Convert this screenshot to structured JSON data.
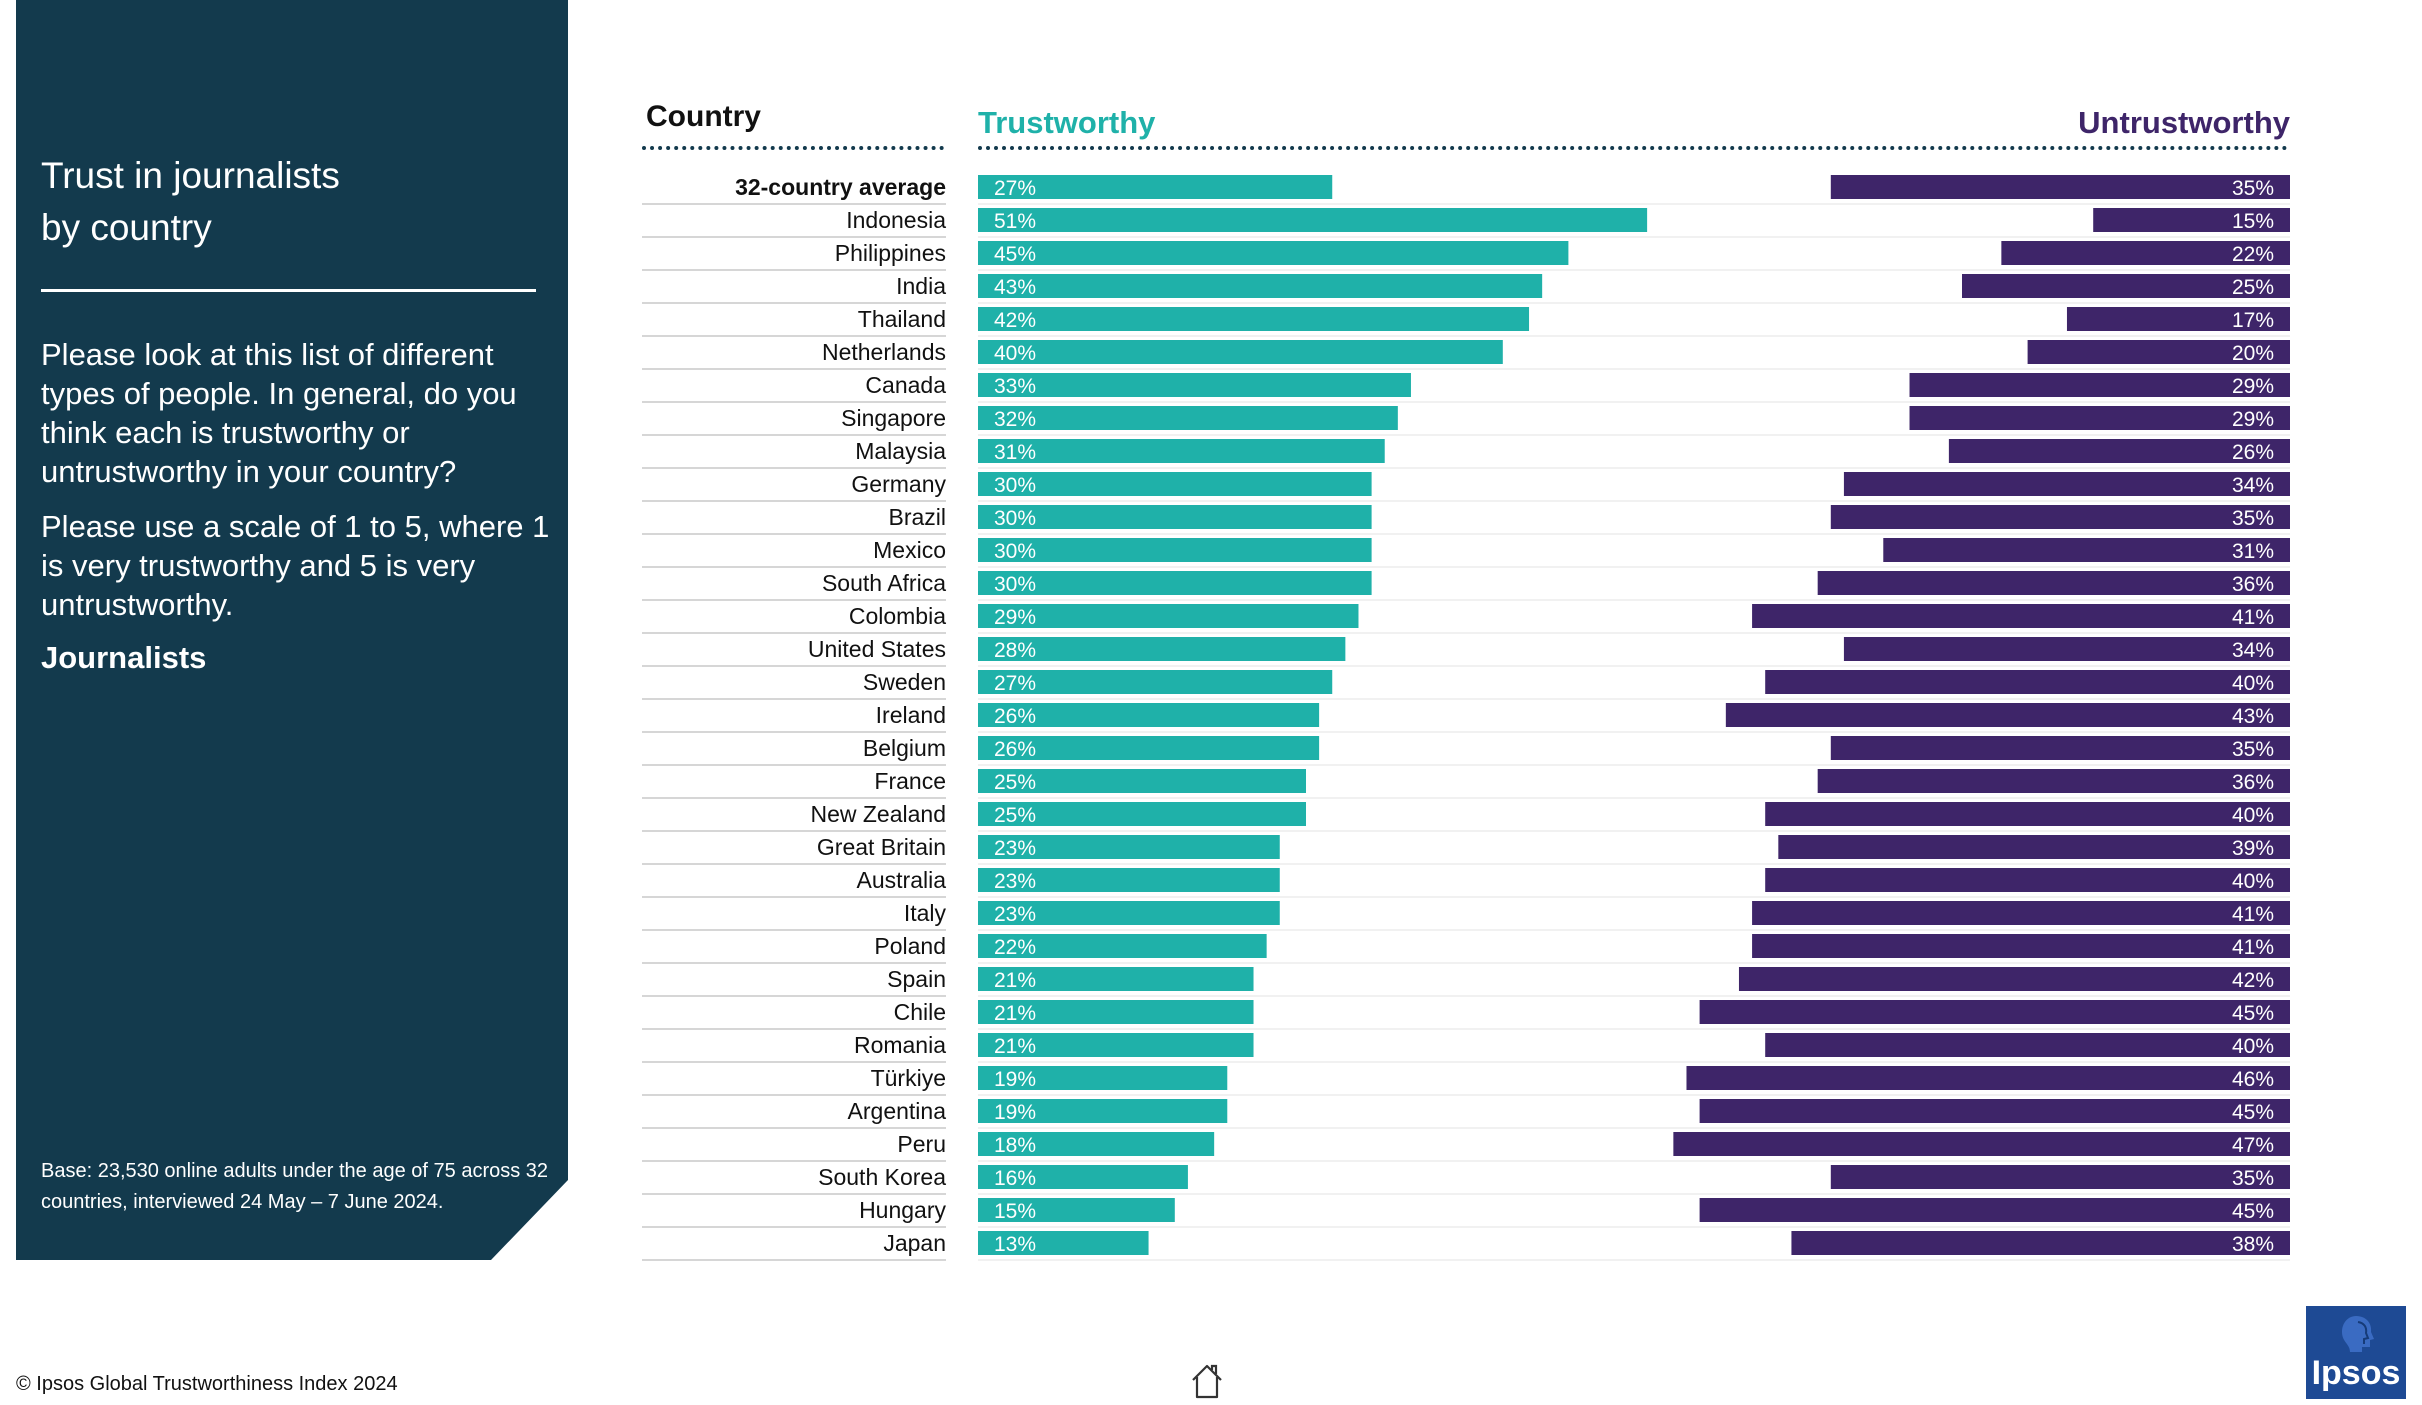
{
  "panel": {
    "title_line1": "Trust in journalists",
    "title_line2": "by country",
    "question": "Please look at this list of different types of people. In general, do you think each is trustworthy or untrustworthy in your country?",
    "scale": "Please use a scale of 1 to 5, where 1 is very trustworthy and 5 is very untrustworthy.",
    "subject": "Journalists",
    "base_note": "Base: 23,530 online adults under the age of 75 across 32 countries, interviewed 24 May – 7 June 2024."
  },
  "headers": {
    "country": "Country",
    "trustworthy": "Trustworthy",
    "untrustworthy": "Untrustworthy"
  },
  "footer": {
    "copyright": "© Ipsos Global Trustworthiness Index 2024",
    "logo_text": "Ipsos",
    "home_icon": "home-icon"
  },
  "colors": {
    "panel": "#133a4d",
    "trustworthy": "#1fb1a9",
    "untrustworthy": "#3e2569",
    "logo": "#1e4a94"
  },
  "chart_data": {
    "type": "bar",
    "orientation": "horizontal",
    "value_format": "{v}%",
    "highlighted_category": "32-country average",
    "categories": [
      "32-country average",
      "Indonesia",
      "Philippines",
      "India",
      "Thailand",
      "Netherlands",
      "Canada",
      "Singapore",
      "Malaysia",
      "Germany",
      "Brazil",
      "Mexico",
      "South Africa",
      "Colombia",
      "United States",
      "Sweden",
      "Ireland",
      "Belgium",
      "France",
      "New Zealand",
      "Great Britain",
      "Australia",
      "Italy",
      "Poland",
      "Spain",
      "Chile",
      "Romania",
      "Türkiye",
      "Argentina",
      "Peru",
      "South Korea",
      "Hungary",
      "Japan"
    ],
    "series": [
      {
        "name": "Trustworthy",
        "align": "left",
        "color": "#1fb1a9",
        "values": [
          27,
          51,
          45,
          43,
          42,
          40,
          33,
          32,
          31,
          30,
          30,
          30,
          30,
          29,
          28,
          27,
          26,
          26,
          25,
          25,
          23,
          23,
          23,
          22,
          21,
          21,
          21,
          19,
          19,
          18,
          16,
          15,
          13
        ]
      },
      {
        "name": "Untrustworthy",
        "align": "right",
        "color": "#3e2569",
        "values": [
          35,
          15,
          22,
          25,
          17,
          20,
          29,
          29,
          26,
          34,
          35,
          31,
          36,
          41,
          34,
          40,
          43,
          35,
          36,
          40,
          39,
          40,
          41,
          41,
          42,
          45,
          40,
          46,
          45,
          47,
          35,
          45,
          38
        ]
      }
    ],
    "xlim": [
      0,
      100
    ]
  }
}
